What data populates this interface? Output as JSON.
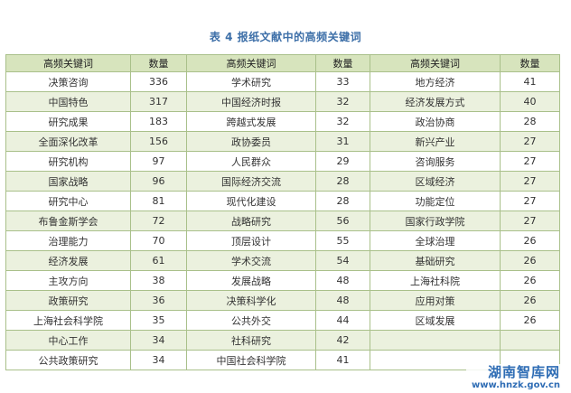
{
  "caption": "表 4 报纸文献中的高频关键词",
  "table": {
    "headers": [
      "高频关键词",
      "数量",
      "高频关键词",
      "数量",
      "高频关键词",
      "数量"
    ],
    "rows": [
      [
        "决策咨询",
        "336",
        "学术研究",
        "33",
        "地方经济",
        "41"
      ],
      [
        "中国特色",
        "317",
        "中国经济时报",
        "32",
        "经济发展方式",
        "40"
      ],
      [
        "研究成果",
        "183",
        "跨越式发展",
        "32",
        "政治协商",
        "28"
      ],
      [
        "全面深化改革",
        "156",
        "政协委员",
        "31",
        "新兴产业",
        "27"
      ],
      [
        "研究机构",
        "97",
        "人民群众",
        "29",
        "咨询服务",
        "27"
      ],
      [
        "国家战略",
        "96",
        "国际经济交流",
        "28",
        "区域经济",
        "27"
      ],
      [
        "研究中心",
        "81",
        "现代化建设",
        "28",
        "功能定位",
        "27"
      ],
      [
        "布鲁金斯学会",
        "72",
        "战略研究",
        "56",
        "国家行政学院",
        "27"
      ],
      [
        "治理能力",
        "70",
        "顶层设计",
        "55",
        "全球治理",
        "26"
      ],
      [
        "经济发展",
        "61",
        "学术交流",
        "54",
        "基础研究",
        "26"
      ],
      [
        "主攻方向",
        "38",
        "发展战略",
        "48",
        "上海社科院",
        "26"
      ],
      [
        "政策研究",
        "36",
        "决策科学化",
        "48",
        "应用对策",
        "26"
      ],
      [
        "上海社会科学院",
        "35",
        "公共外交",
        "44",
        "区域发展",
        "26"
      ],
      [
        "中心工作",
        "34",
        "社科研究",
        "42",
        "",
        ""
      ],
      [
        "公共政策研究",
        "34",
        "中国社会科学院",
        "41",
        "",
        ""
      ]
    ]
  },
  "watermark": {
    "name": "湖南智库网",
    "url": "www.hnzk.gov.cn"
  }
}
